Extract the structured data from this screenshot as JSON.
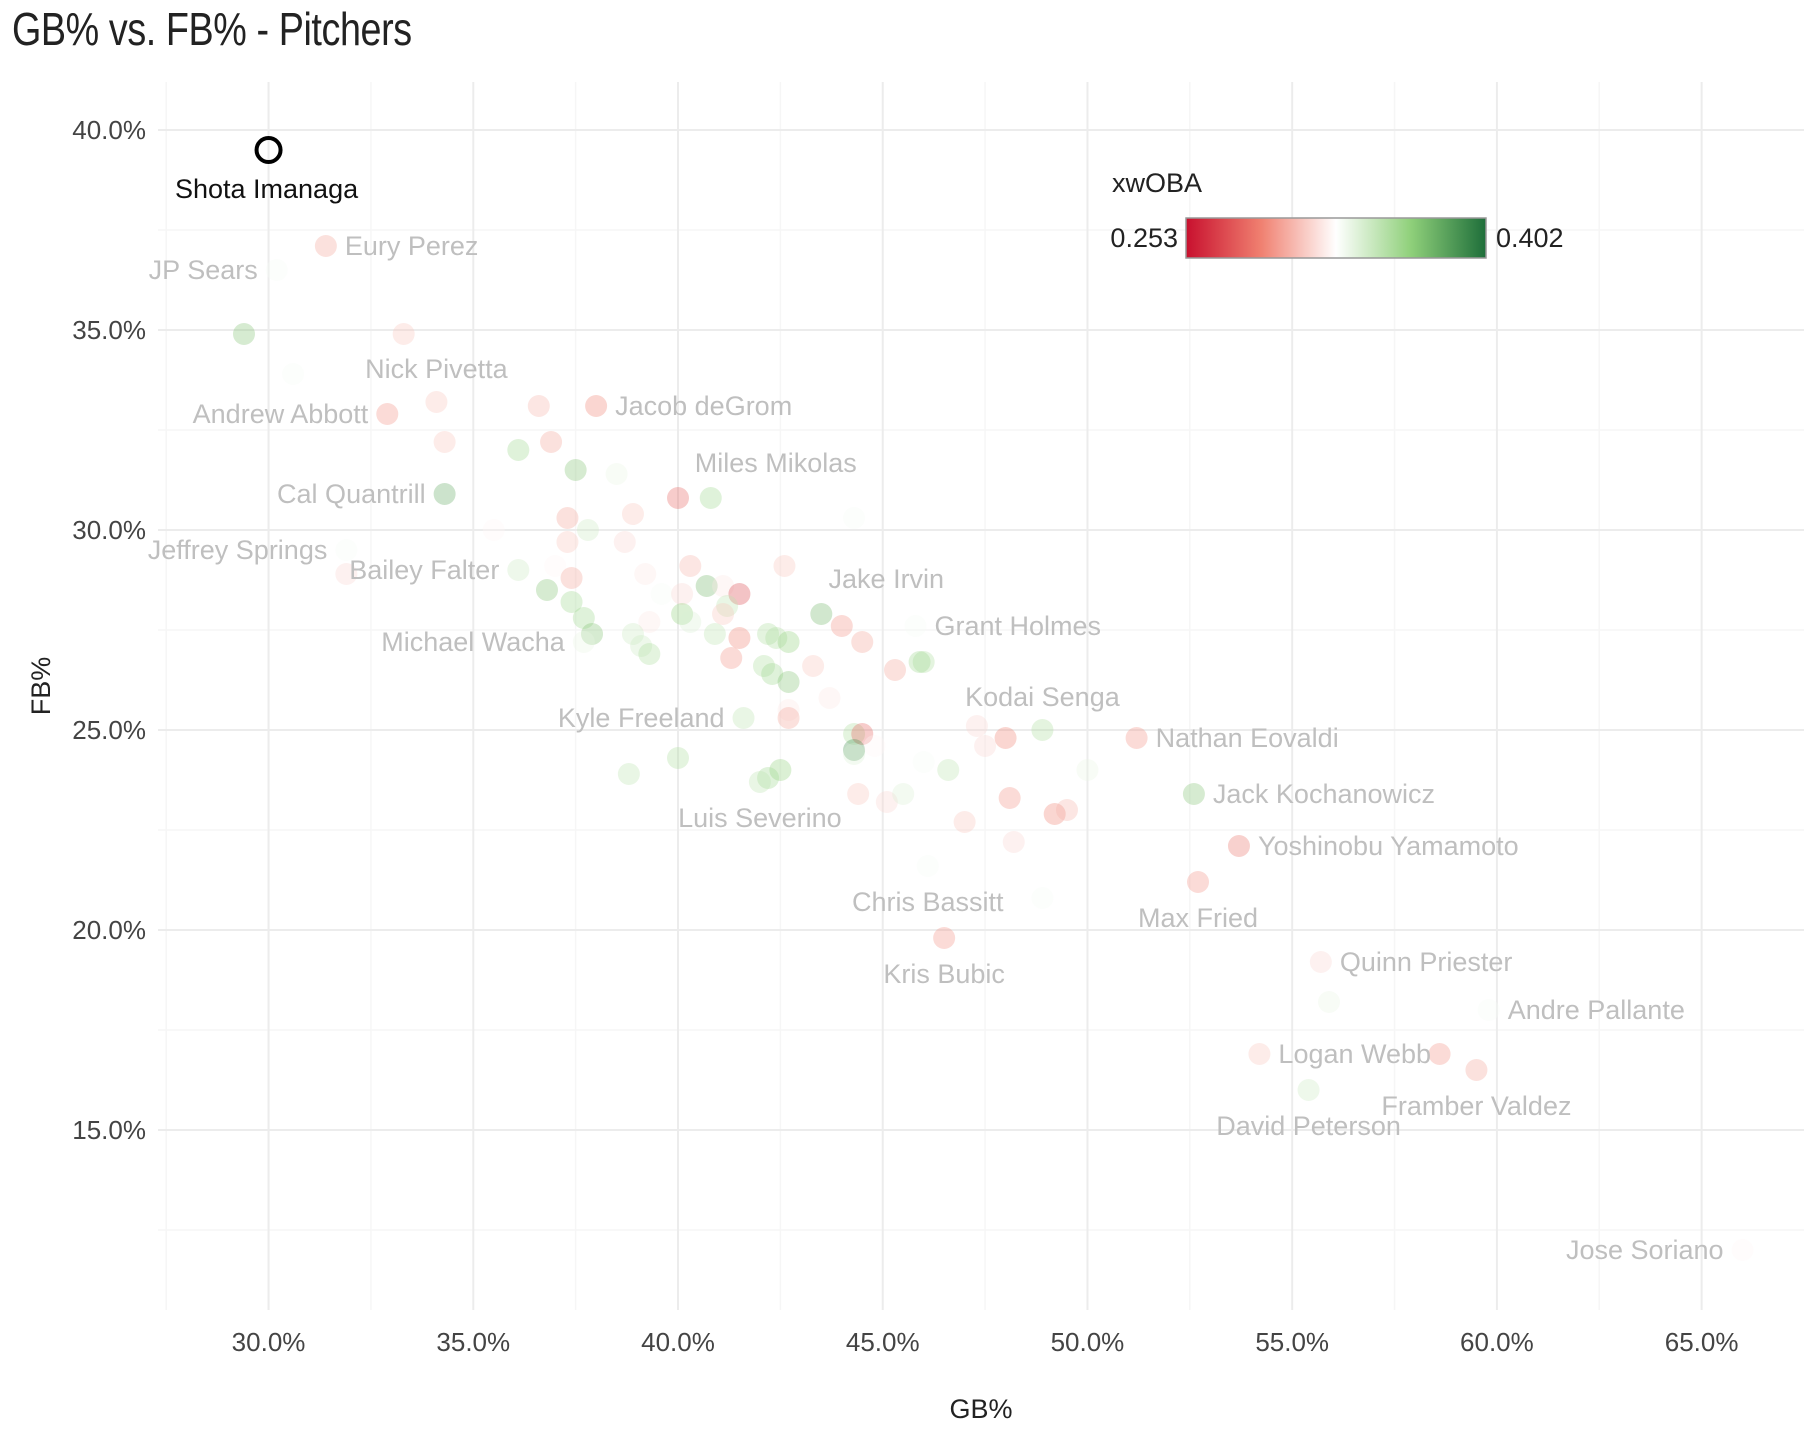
{
  "chart_data": {
    "type": "scatter",
    "title": "GB% vs. FB% - Pitchers",
    "xlabel": "GB%",
    "ylabel": "FB%",
    "xlim": [
      27.3,
      67.5
    ],
    "ylim": [
      10.5,
      41.2
    ],
    "x_ticks": [
      30,
      35,
      40,
      45,
      50,
      55,
      60,
      65
    ],
    "y_ticks": [
      15,
      20,
      25,
      30,
      35,
      40
    ],
    "x_tick_labels": [
      "30.0%",
      "35.0%",
      "40.0%",
      "45.0%",
      "50.0%",
      "55.0%",
      "60.0%",
      "65.0%"
    ],
    "y_tick_labels": [
      "15.0%",
      "20.0%",
      "25.0%",
      "30.0%",
      "35.0%",
      "40.0%"
    ],
    "legend": {
      "title": "xwOBA",
      "min_label": "0.253",
      "max_label": "0.402",
      "min": 0.253,
      "max": 0.402,
      "placement": "top-right",
      "colors": [
        "#c8102e",
        "#f08070",
        "#ffffff",
        "#8fd07a",
        "#1e6e3a"
      ]
    },
    "highlight": {
      "name": "Shota Imanaga",
      "x": 30.0,
      "y": 39.5
    },
    "labeled_points": [
      {
        "name": "Eury Perez",
        "x": 31.4,
        "y": 37.1,
        "xwoba": 0.3,
        "side": "right"
      },
      {
        "name": "JP Sears",
        "x": 30.2,
        "y": 36.5,
        "xwoba": 0.33,
        "side": "left"
      },
      {
        "name": "Nick Pivetta",
        "x": 34.1,
        "y": 33.2,
        "xwoba": 0.31,
        "side": "above"
      },
      {
        "name": "Andrew Abbott",
        "x": 32.9,
        "y": 32.9,
        "xwoba": 0.295,
        "side": "left"
      },
      {
        "name": "Jacob deGrom",
        "x": 38.0,
        "y": 33.1,
        "xwoba": 0.29,
        "side": "right"
      },
      {
        "name": "Miles Mikolas",
        "x": 40.8,
        "y": 30.8,
        "xwoba": 0.36,
        "side": "above-right"
      },
      {
        "name": "Cal Quantrill",
        "x": 34.3,
        "y": 30.9,
        "xwoba": 0.38,
        "side": "left"
      },
      {
        "name": "Jeffrey Springs",
        "x": 31.9,
        "y": 29.5,
        "xwoba": 0.33,
        "side": "left"
      },
      {
        "name": "Bailey Falter",
        "x": 36.1,
        "y": 29.0,
        "xwoba": 0.345,
        "side": "left"
      },
      {
        "name": "Jake Irvin",
        "x": 43.5,
        "y": 27.9,
        "xwoba": 0.375,
        "side": "above-right"
      },
      {
        "name": "Grant Holmes",
        "x": 45.8,
        "y": 27.6,
        "xwoba": 0.33,
        "side": "right"
      },
      {
        "name": "Michael Wacha",
        "x": 37.7,
        "y": 27.2,
        "xwoba": 0.335,
        "side": "left"
      },
      {
        "name": "Kodai Senga",
        "x": 48.9,
        "y": 25.0,
        "xwoba": 0.355,
        "side": "above"
      },
      {
        "name": "Nathan Eovaldi",
        "x": 51.2,
        "y": 24.8,
        "xwoba": 0.295,
        "side": "right"
      },
      {
        "name": "Kyle Freeland",
        "x": 41.6,
        "y": 25.3,
        "xwoba": 0.35,
        "side": "left"
      },
      {
        "name": "Jack Kochanowicz",
        "x": 52.6,
        "y": 23.4,
        "xwoba": 0.37,
        "side": "right"
      },
      {
        "name": "Luis Severino",
        "x": 42.0,
        "y": 23.7,
        "xwoba": 0.35,
        "side": "below"
      },
      {
        "name": "Yoshinobu Yamamoto",
        "x": 53.7,
        "y": 22.1,
        "xwoba": 0.285,
        "side": "right"
      },
      {
        "name": "Chris Bassitt",
        "x": 46.1,
        "y": 21.6,
        "xwoba": 0.33,
        "side": "below"
      },
      {
        "name": "Max Fried",
        "x": 52.7,
        "y": 21.2,
        "xwoba": 0.295,
        "side": "below"
      },
      {
        "name": "Kris Bubic",
        "x": 46.5,
        "y": 19.8,
        "xwoba": 0.295,
        "side": "below"
      },
      {
        "name": "Quinn Priester",
        "x": 55.7,
        "y": 19.2,
        "xwoba": 0.315,
        "side": "right"
      },
      {
        "name": "Andre Pallante",
        "x": 59.8,
        "y": 18.0,
        "xwoba": 0.33,
        "side": "right"
      },
      {
        "name": "Logan Webb",
        "x": 54.2,
        "y": 16.9,
        "xwoba": 0.31,
        "side": "right"
      },
      {
        "name": "Framber Valdez",
        "x": 59.5,
        "y": 16.5,
        "xwoba": 0.3,
        "side": "below"
      },
      {
        "name": "David Peterson",
        "x": 55.4,
        "y": 16.0,
        "xwoba": 0.345,
        "side": "below"
      },
      {
        "name": "Jose Soriano",
        "x": 66.0,
        "y": 12.0,
        "xwoba": 0.325,
        "side": "left"
      }
    ],
    "other_points": [
      {
        "x": 29.4,
        "y": 34.9,
        "xwoba": 0.37
      },
      {
        "x": 30.6,
        "y": 33.9,
        "xwoba": 0.33
      },
      {
        "x": 33.3,
        "y": 34.9,
        "xwoba": 0.31
      },
      {
        "x": 36.6,
        "y": 33.1,
        "xwoba": 0.305
      },
      {
        "x": 34.3,
        "y": 32.2,
        "xwoba": 0.31
      },
      {
        "x": 36.1,
        "y": 32.0,
        "xwoba": 0.36
      },
      {
        "x": 36.9,
        "y": 32.2,
        "xwoba": 0.3
      },
      {
        "x": 37.5,
        "y": 31.5,
        "xwoba": 0.37
      },
      {
        "x": 38.5,
        "y": 31.4,
        "xwoba": 0.335
      },
      {
        "x": 40.0,
        "y": 30.8,
        "xwoba": 0.28
      },
      {
        "x": 44.3,
        "y": 30.3,
        "xwoba": 0.33
      },
      {
        "x": 37.3,
        "y": 30.3,
        "xwoba": 0.3
      },
      {
        "x": 38.9,
        "y": 30.4,
        "xwoba": 0.31
      },
      {
        "x": 35.5,
        "y": 30.0,
        "xwoba": 0.325
      },
      {
        "x": 37.8,
        "y": 30.0,
        "xwoba": 0.345
      },
      {
        "x": 37.3,
        "y": 29.7,
        "xwoba": 0.31
      },
      {
        "x": 38.7,
        "y": 29.7,
        "xwoba": 0.315
      },
      {
        "x": 31.9,
        "y": 28.9,
        "xwoba": 0.315
      },
      {
        "x": 37.0,
        "y": 29.1,
        "xwoba": 0.325
      },
      {
        "x": 37.4,
        "y": 28.8,
        "xwoba": 0.3
      },
      {
        "x": 39.2,
        "y": 28.9,
        "xwoba": 0.32
      },
      {
        "x": 40.3,
        "y": 29.1,
        "xwoba": 0.305
      },
      {
        "x": 42.6,
        "y": 29.1,
        "xwoba": 0.31
      },
      {
        "x": 36.8,
        "y": 28.5,
        "xwoba": 0.37
      },
      {
        "x": 39.6,
        "y": 28.4,
        "xwoba": 0.33
      },
      {
        "x": 40.1,
        "y": 28.4,
        "xwoba": 0.315
      },
      {
        "x": 40.7,
        "y": 28.6,
        "xwoba": 0.375
      },
      {
        "x": 41.1,
        "y": 28.6,
        "xwoba": 0.32
      },
      {
        "x": 41.5,
        "y": 28.4,
        "xwoba": 0.27
      },
      {
        "x": 37.4,
        "y": 28.2,
        "xwoba": 0.36
      },
      {
        "x": 37.7,
        "y": 27.8,
        "xwoba": 0.36
      },
      {
        "x": 40.1,
        "y": 27.9,
        "xwoba": 0.365
      },
      {
        "x": 40.3,
        "y": 27.7,
        "xwoba": 0.34
      },
      {
        "x": 41.2,
        "y": 28.1,
        "xwoba": 0.35
      },
      {
        "x": 41.1,
        "y": 27.9,
        "xwoba": 0.31
      },
      {
        "x": 39.3,
        "y": 27.7,
        "xwoba": 0.32
      },
      {
        "x": 37.9,
        "y": 27.4,
        "xwoba": 0.37
      },
      {
        "x": 38.9,
        "y": 27.4,
        "xwoba": 0.345
      },
      {
        "x": 40.9,
        "y": 27.4,
        "xwoba": 0.35
      },
      {
        "x": 41.5,
        "y": 27.3,
        "xwoba": 0.29
      },
      {
        "x": 42.2,
        "y": 27.4,
        "xwoba": 0.355
      },
      {
        "x": 42.4,
        "y": 27.3,
        "xwoba": 0.355
      },
      {
        "x": 42.7,
        "y": 27.2,
        "xwoba": 0.365
      },
      {
        "x": 44.0,
        "y": 27.6,
        "xwoba": 0.295
      },
      {
        "x": 44.5,
        "y": 27.2,
        "xwoba": 0.3
      },
      {
        "x": 39.1,
        "y": 27.1,
        "xwoba": 0.345
      },
      {
        "x": 39.3,
        "y": 26.9,
        "xwoba": 0.355
      },
      {
        "x": 41.3,
        "y": 26.8,
        "xwoba": 0.295
      },
      {
        "x": 42.1,
        "y": 26.6,
        "xwoba": 0.355
      },
      {
        "x": 42.3,
        "y": 26.4,
        "xwoba": 0.36
      },
      {
        "x": 42.7,
        "y": 26.2,
        "xwoba": 0.37
      },
      {
        "x": 43.3,
        "y": 26.6,
        "xwoba": 0.31
      },
      {
        "x": 45.3,
        "y": 26.5,
        "xwoba": 0.3
      },
      {
        "x": 46.0,
        "y": 26.7,
        "xwoba": 0.355
      },
      {
        "x": 45.9,
        "y": 26.7,
        "xwoba": 0.36
      },
      {
        "x": 43.7,
        "y": 25.8,
        "xwoba": 0.32
      },
      {
        "x": 42.7,
        "y": 25.5,
        "xwoba": 0.32
      },
      {
        "x": 42.7,
        "y": 25.3,
        "xwoba": 0.3
      },
      {
        "x": 44.3,
        "y": 24.9,
        "xwoba": 0.355
      },
      {
        "x": 44.5,
        "y": 24.9,
        "xwoba": 0.28
      },
      {
        "x": 44.3,
        "y": 24.5,
        "xwoba": 0.39
      },
      {
        "x": 44.3,
        "y": 24.4,
        "xwoba": 0.34
      },
      {
        "x": 44.8,
        "y": 24.6,
        "xwoba": 0.325
      },
      {
        "x": 47.3,
        "y": 25.1,
        "xwoba": 0.315
      },
      {
        "x": 47.5,
        "y": 24.6,
        "xwoba": 0.315
      },
      {
        "x": 48.0,
        "y": 24.8,
        "xwoba": 0.29
      },
      {
        "x": 38.8,
        "y": 23.9,
        "xwoba": 0.35
      },
      {
        "x": 40.0,
        "y": 24.3,
        "xwoba": 0.355
      },
      {
        "x": 42.5,
        "y": 24.0,
        "xwoba": 0.365
      },
      {
        "x": 42.2,
        "y": 23.8,
        "xwoba": 0.36
      },
      {
        "x": 46.0,
        "y": 24.2,
        "xwoba": 0.33
      },
      {
        "x": 46.6,
        "y": 24.0,
        "xwoba": 0.35
      },
      {
        "x": 50.0,
        "y": 24.0,
        "xwoba": 0.335
      },
      {
        "x": 44.4,
        "y": 23.4,
        "xwoba": 0.31
      },
      {
        "x": 45.1,
        "y": 23.2,
        "xwoba": 0.315
      },
      {
        "x": 45.5,
        "y": 23.4,
        "xwoba": 0.34
      },
      {
        "x": 48.1,
        "y": 23.3,
        "xwoba": 0.295
      },
      {
        "x": 49.2,
        "y": 22.9,
        "xwoba": 0.29
      },
      {
        "x": 49.5,
        "y": 23.0,
        "xwoba": 0.305
      },
      {
        "x": 47.0,
        "y": 22.7,
        "xwoba": 0.31
      },
      {
        "x": 48.2,
        "y": 22.2,
        "xwoba": 0.315
      },
      {
        "x": 48.9,
        "y": 20.8,
        "xwoba": 0.33
      },
      {
        "x": 55.9,
        "y": 18.2,
        "xwoba": 0.335
      },
      {
        "x": 58.6,
        "y": 16.9,
        "xwoba": 0.295
      }
    ]
  }
}
